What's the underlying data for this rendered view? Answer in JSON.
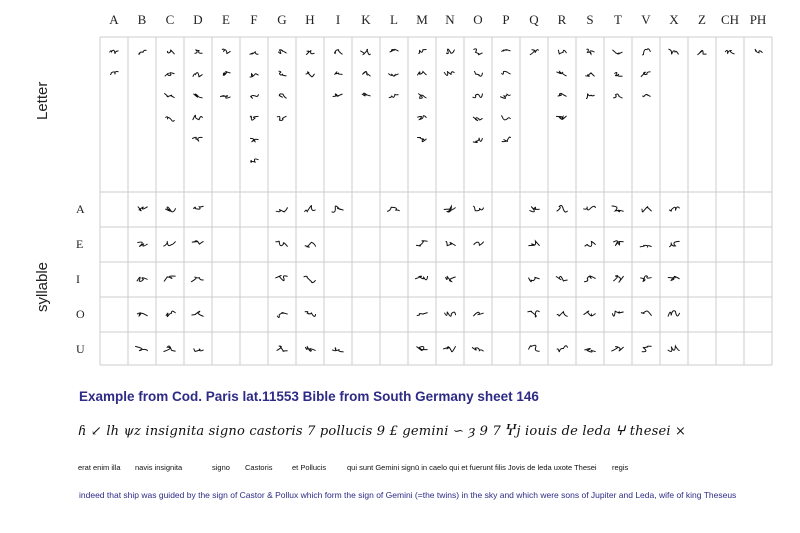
{
  "columns": [
    "A",
    "B",
    "C",
    "D",
    "E",
    "F",
    "G",
    "H",
    "I",
    "K",
    "L",
    "M",
    "N",
    "O",
    "P",
    "Q",
    "R",
    "S",
    "T",
    "V",
    "X",
    "Z",
    "CH",
    "PH"
  ],
  "sections": {
    "letter": "Letter",
    "syllable": "syllable"
  },
  "syllable_rows": [
    "A",
    "E",
    "I",
    "O",
    "U"
  ],
  "example": {
    "title": "Example from Cod. Paris lat.11553 Bible from South Germany sheet 146",
    "shorthand_line": "ɦ ↙ lh ψz insignita signo castoris 7 pollucis 9 £ gemini ∽ ȝ 9 7 Ⴤj iouis de leda ⵖ thesei ×",
    "latin_words": [
      "erat enim illa",
      "navis insignita",
      "signo",
      "Castoris",
      "et Pollucis",
      "qui sunt Gemini signū in caelo qui et fuerunt filis Jovis de leda uxote Thesei",
      "regis"
    ],
    "translation": "indeed that ship was guided by the sign of Castor & Pollux which form the sign of Gemini (=the twins) in the sky and which were sons of Jupiter and Leda, wife of king Theseus"
  },
  "colors": {
    "grid": "#cccccc",
    "title": "#2e2b86",
    "ink": "#111111"
  }
}
